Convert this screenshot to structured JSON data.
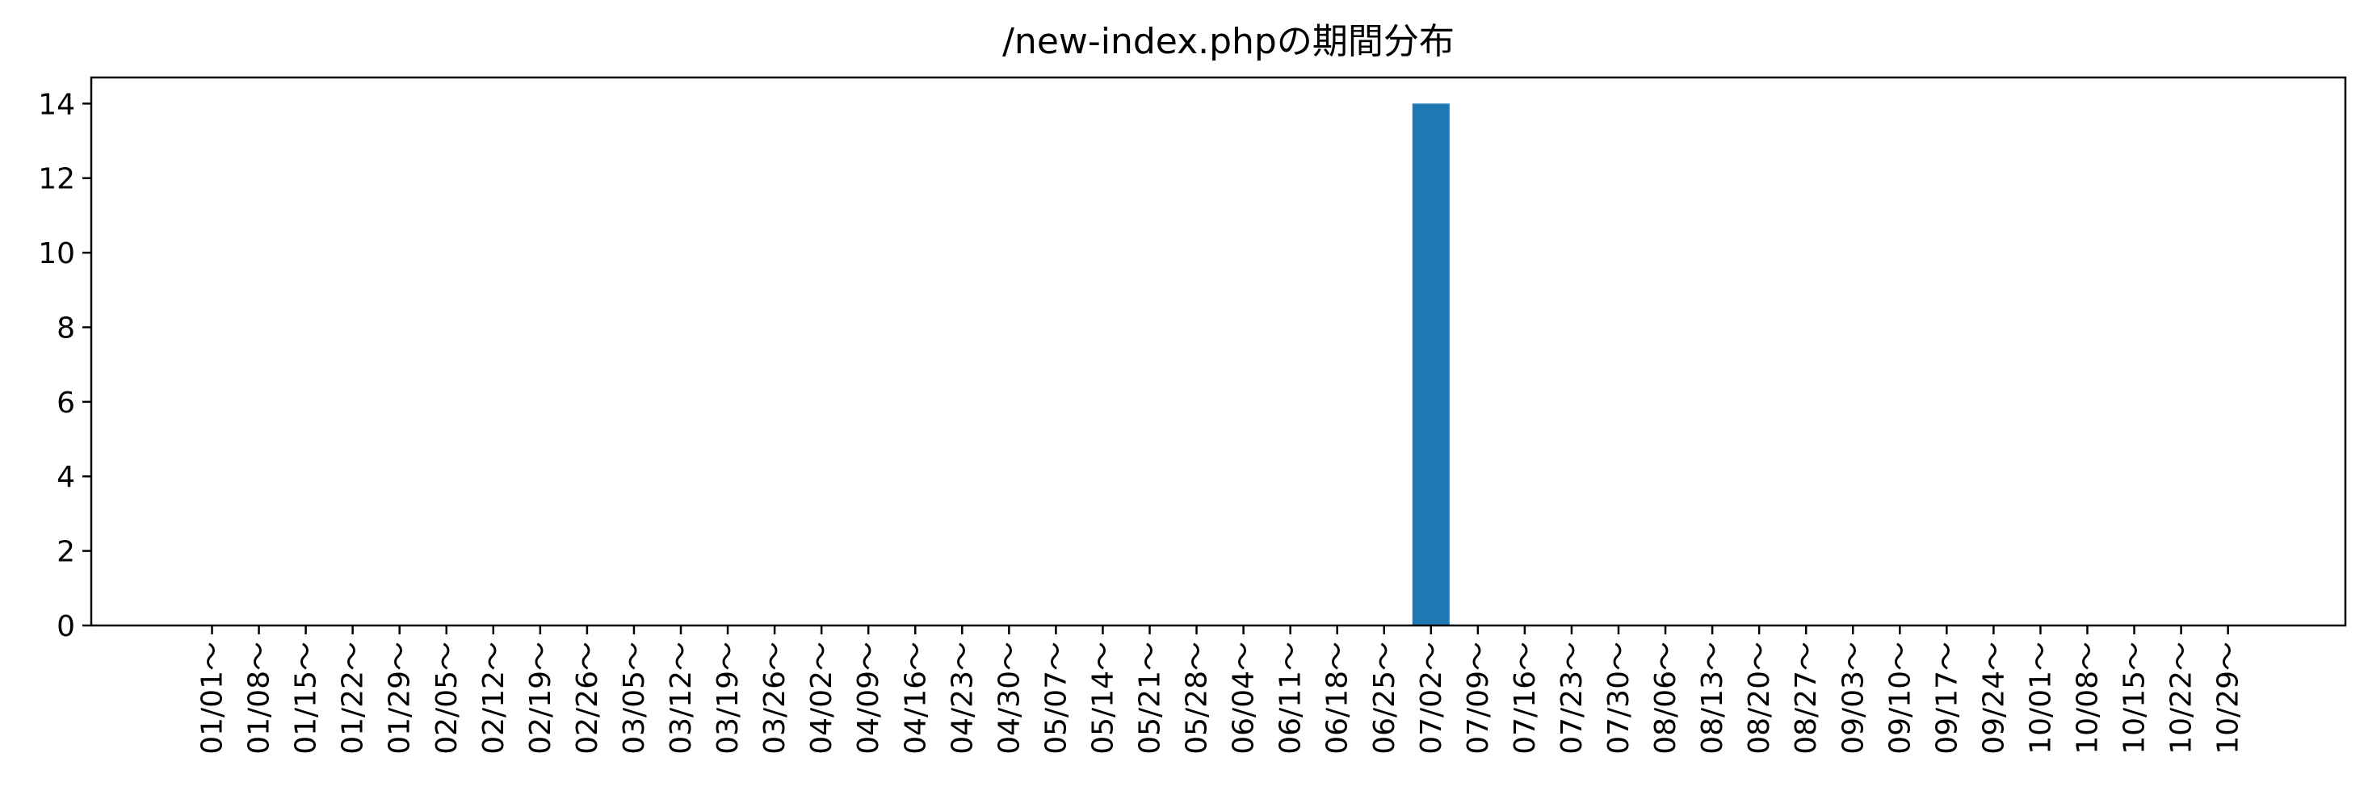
{
  "chart_data": {
    "type": "bar",
    "title": "/new-index.phpの期間分布",
    "xlabel": "",
    "ylabel": "",
    "categories": [
      "01/01～",
      "01/08～",
      "01/15～",
      "01/22～",
      "01/29～",
      "02/05～",
      "02/12～",
      "02/19～",
      "02/26～",
      "03/05～",
      "03/12～",
      "03/19～",
      "03/26～",
      "04/02～",
      "04/09～",
      "04/16～",
      "04/23～",
      "04/30～",
      "05/07～",
      "05/14～",
      "05/21～",
      "05/28～",
      "06/04～",
      "06/11～",
      "06/18～",
      "06/25～",
      "07/02～",
      "07/09～",
      "07/16～",
      "07/23～",
      "07/30～",
      "08/06～",
      "08/13～",
      "08/20～",
      "08/27～",
      "09/03～",
      "09/10～",
      "09/17～",
      "09/24～",
      "10/01～",
      "10/08～",
      "10/15～",
      "10/22～",
      "10/29～"
    ],
    "values": [
      0,
      0,
      0,
      0,
      0,
      0,
      0,
      0,
      0,
      0,
      0,
      0,
      0,
      0,
      0,
      0,
      0,
      0,
      0,
      0,
      0,
      0,
      0,
      0,
      0,
      0,
      14,
      0,
      0,
      0,
      0,
      0,
      0,
      0,
      0,
      0,
      0,
      0,
      0,
      0,
      0,
      0,
      0,
      0
    ],
    "yticks": [
      0,
      2,
      4,
      6,
      8,
      10,
      12,
      14
    ],
    "ylim": [
      0,
      14.7
    ],
    "bar_color": "#1f77b4",
    "grid": false,
    "legend": "none"
  }
}
